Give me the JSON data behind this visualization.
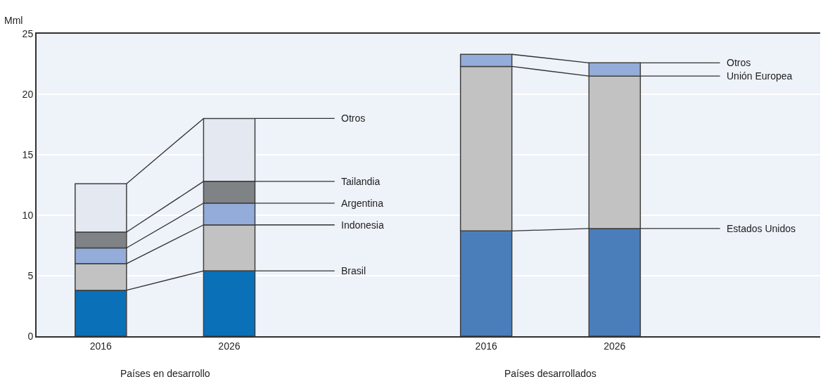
{
  "chart_data": {
    "type": "bar",
    "stacked": true,
    "ylabel": "Mml",
    "categories": [
      "2016",
      "2026",
      "2016",
      "2026"
    ],
    "series": [
      {
        "name": "Brasil",
        "color": "#0a70b8",
        "values": [
          3.8,
          5.4,
          null,
          null
        ]
      },
      {
        "name": "Indonesia",
        "color": "#c1c2c1",
        "values": [
          2.2,
          3.8,
          null,
          null
        ]
      },
      {
        "name": "Argentina",
        "color": "#94acd9",
        "values": [
          1.3,
          1.8,
          null,
          null
        ]
      },
      {
        "name": "Tailandia",
        "color": "#7f8385",
        "values": [
          1.3,
          1.8,
          null,
          null
        ]
      },
      {
        "name": "Otros",
        "color": "#e3e8f1",
        "values": [
          4.0,
          5.2,
          null,
          null
        ]
      },
      {
        "name": "Estados Unidos",
        "color": "#4a7eba",
        "values": [
          null,
          null,
          8.7,
          8.9
        ]
      },
      {
        "name": "Unión Europea",
        "color": "#c1c2c1",
        "values": [
          null,
          null,
          13.6,
          12.6
        ]
      },
      {
        "name": "Otros",
        "color": "#94acd9",
        "values": [
          null,
          null,
          1.0,
          1.1
        ]
      }
    ],
    "annotations": [
      "Países en desarrollo",
      "Países desarrollados"
    ],
    "ylim": [
      0,
      25
    ],
    "yticks": [
      0,
      5,
      10,
      15,
      20,
      25
    ],
    "grid": "y",
    "legend": false
  }
}
